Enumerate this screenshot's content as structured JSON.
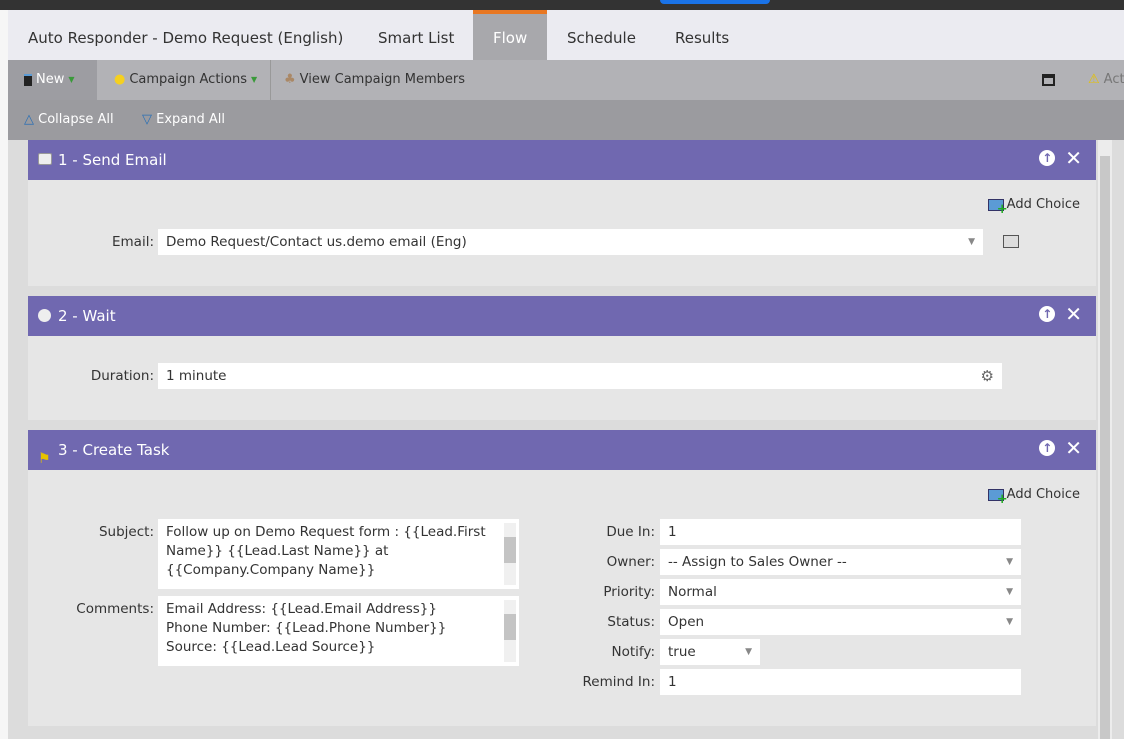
{
  "tabs": [
    {
      "label": "Auto Responder - Demo Request (English)"
    },
    {
      "label": "Smart List"
    },
    {
      "label": "Flow",
      "active": true
    },
    {
      "label": "Schedule"
    },
    {
      "label": "Results"
    }
  ],
  "toolbar": {
    "new": "New",
    "campaign_actions": "Campaign Actions",
    "view_members": "View Campaign Members",
    "activate": "Act"
  },
  "subbar": {
    "collapse": "Collapse All",
    "expand": "Expand All"
  },
  "colors": {
    "header": "#7068b0",
    "accent": "#e87722"
  },
  "steps": [
    {
      "title": "1 - Send Email",
      "icon": "email-icon",
      "add_choice": "Add Choice",
      "email_label": "Email:",
      "email_value": "Demo Request/Contact us.demo email (Eng)"
    },
    {
      "title": "2 - Wait",
      "icon": "clock-icon",
      "duration_label": "Duration:",
      "duration_value": "1 minute"
    },
    {
      "title": "3 - Create Task",
      "icon": "flag-icon",
      "add_choice": "Add Choice",
      "subject_label": "Subject:",
      "subject_value": "Follow up on Demo Request form : {{Lead.First Name}} {{Lead.Last Name}} at {{Company.Company Name}}",
      "comments_label": "Comments:",
      "comments_lines": [
        "Email Address: {{Lead.Email Address}}",
        "Phone Number: {{Lead.Phone Number}}",
        "Source: {{Lead.Lead Source}}"
      ],
      "fields": [
        {
          "label": "Due In:",
          "value": "1"
        },
        {
          "label": "Owner:",
          "value": "-- Assign to Sales Owner --",
          "dropdown": true
        },
        {
          "label": "Priority:",
          "value": "Normal",
          "dropdown": true
        },
        {
          "label": "Status:",
          "value": "Open",
          "dropdown": true
        },
        {
          "label": "Notify:",
          "value": "true",
          "dropdown": true
        },
        {
          "label": "Remind In:",
          "value": "1"
        }
      ]
    }
  ]
}
